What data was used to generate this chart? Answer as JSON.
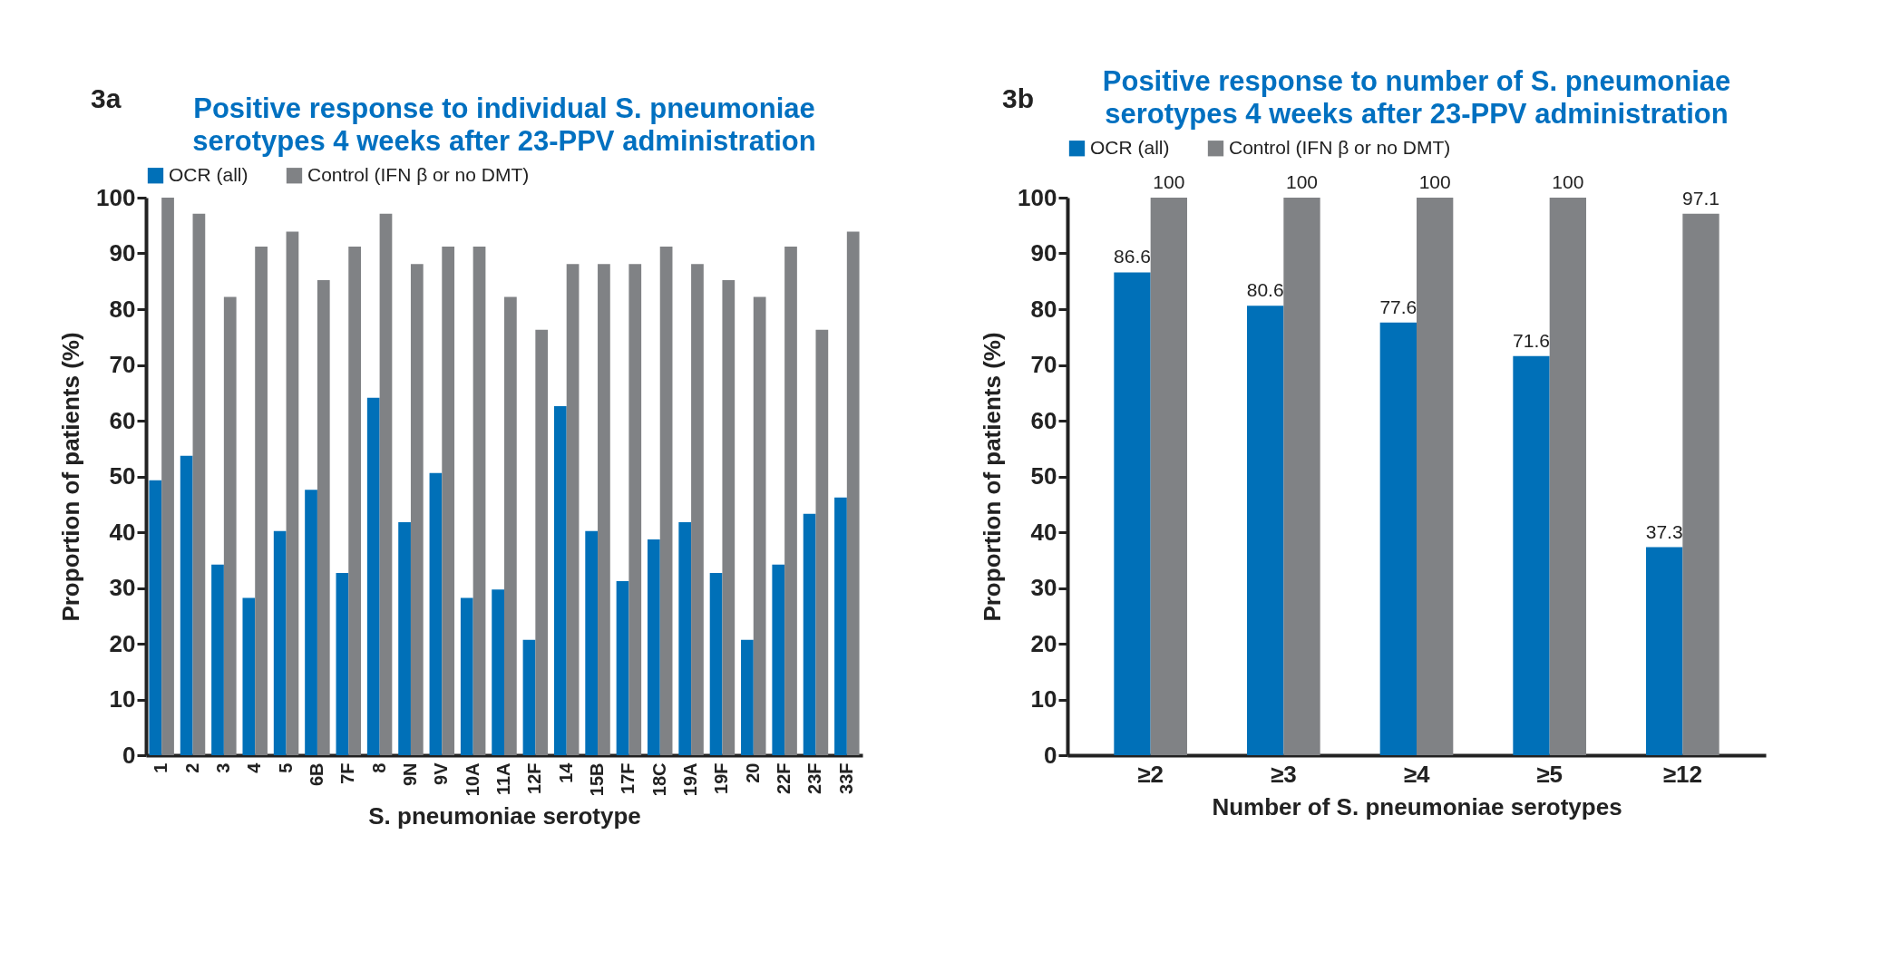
{
  "chart_data": [
    {
      "type": "bar",
      "title": "Positive response to individual S. pneumoniae serotypes 4 weeks after 23-PPV administration",
      "xlabel": "S. pneumoniae serotype",
      "ylabel": "Proportion of patients (%)",
      "annotations": [
        "3a"
      ],
      "categories": [
        "1",
        "2",
        "3",
        "4",
        "5",
        "6B",
        "7F",
        "8",
        "9N",
        "9V",
        "10A",
        "11A",
        "12F",
        "14",
        "15B",
        "17F",
        "18C",
        "19A",
        "19F",
        "20",
        "22F",
        "23F",
        "33F"
      ],
      "series": [
        {
          "name": "OCR (all)",
          "color": "#0070b8",
          "values": [
            49.3,
            53.7,
            34.2,
            28.2,
            40.2,
            47.6,
            32.7,
            64.1,
            41.8,
            50.6,
            28.2,
            29.7,
            20.7,
            62.6,
            40.2,
            31.2,
            38.7,
            41.8,
            32.7,
            20.7,
            34.2,
            43.3,
            46.2
          ]
        },
        {
          "name": "Control (IFN β or no DMT)",
          "color": "#808285",
          "values": [
            100,
            97.1,
            82.2,
            91.2,
            93.9,
            85.2,
            91.2,
            97.1,
            88.1,
            91.2,
            91.2,
            82.2,
            76.3,
            88.1,
            88.1,
            88.1,
            91.2,
            88.1,
            85.2,
            82.2,
            91.2,
            76.3,
            93.9
          ]
        }
      ],
      "ylim": [
        0,
        100
      ],
      "yticks": [
        0,
        10,
        20,
        30,
        40,
        50,
        60,
        70,
        80,
        90,
        100
      ],
      "legend": "top",
      "grid": false
    },
    {
      "type": "bar",
      "title": "Positive response to number of S. pneumoniae serotypes 4 weeks after 23-PPV administration",
      "xlabel": "Number of S. pneumoniae serotypes",
      "ylabel": "Proportion of patients (%)",
      "annotations": [
        "3b"
      ],
      "categories": [
        "≥2",
        "≥3",
        "≥4",
        "≥5",
        "≥12"
      ],
      "series": [
        {
          "name": "OCR (all)",
          "color": "#0070b8",
          "values": [
            86.6,
            80.6,
            77.6,
            71.6,
            37.3
          ]
        },
        {
          "name": "Control (IFN β or no DMT)",
          "color": "#808285",
          "values": [
            100,
            100,
            100,
            100,
            97.1
          ]
        }
      ],
      "ylim": [
        0,
        100
      ],
      "yticks": [
        0,
        10,
        20,
        30,
        40,
        50,
        60,
        70,
        80,
        90,
        100
      ],
      "legend": "top",
      "grid": false,
      "data_labels": true
    }
  ]
}
